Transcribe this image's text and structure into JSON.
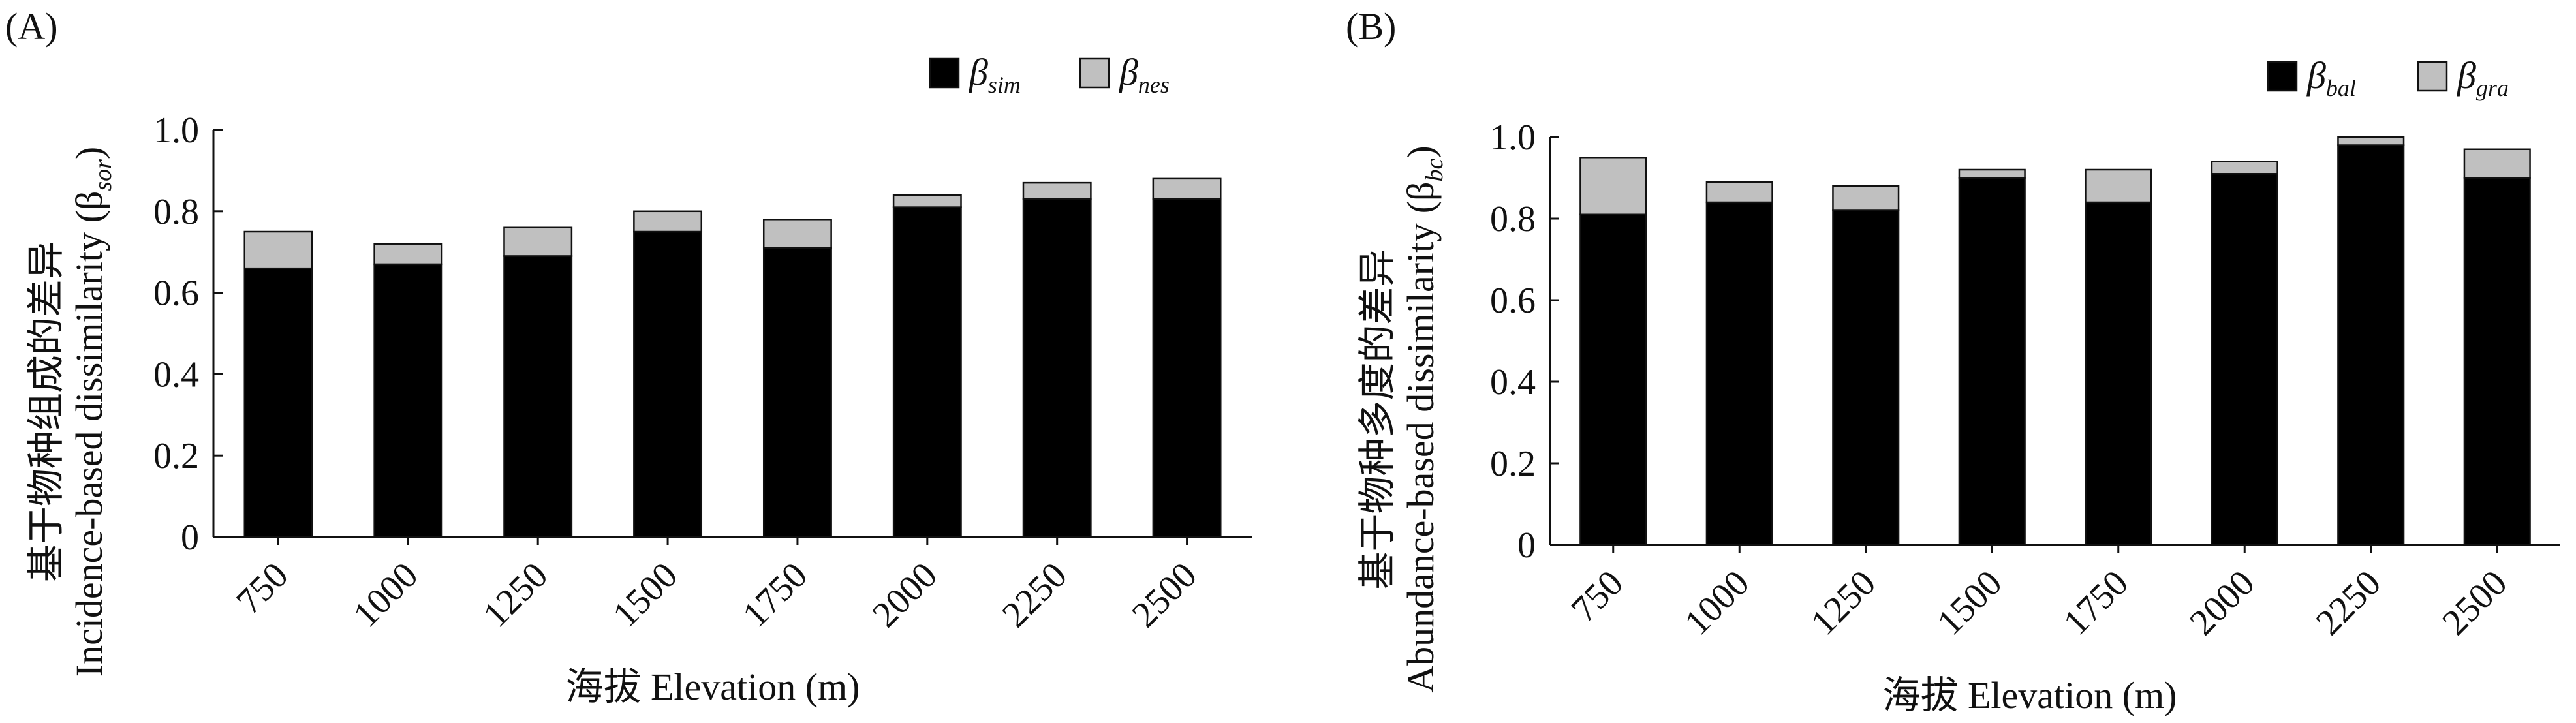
{
  "chart_data": [
    {
      "panel_label": "(A)",
      "type": "bar",
      "stacked": true,
      "categories": [
        "750",
        "1000",
        "1250",
        "1500",
        "1750",
        "2000",
        "2250",
        "2500"
      ],
      "series": [
        {
          "name": "β",
          "subscript": "sim",
          "color": "#000000",
          "values": [
            0.66,
            0.67,
            0.69,
            0.75,
            0.71,
            0.81,
            0.83,
            0.83
          ]
        },
        {
          "name": "β",
          "subscript": "nes",
          "color": "#c0c0c0",
          "values": [
            0.09,
            0.05,
            0.07,
            0.05,
            0.07,
            0.03,
            0.04,
            0.05
          ]
        }
      ],
      "ylabel_zh": "基于物种组成的差异",
      "ylabel_en": "Incidence-based dissimilarity (β",
      "ylabel_sub": "sor",
      "ylabel_close": ")",
      "xlabel": "海拔 Elevation (m)",
      "ylim": [
        0,
        1.0
      ],
      "yticks": [
        "0",
        "0.2",
        "0.4",
        "0.6",
        "0.8",
        "1.0"
      ],
      "legend_position": "top-right",
      "grid": false
    },
    {
      "panel_label": "(B)",
      "type": "bar",
      "stacked": true,
      "categories": [
        "750",
        "1000",
        "1250",
        "1500",
        "1750",
        "2000",
        "2250",
        "2500"
      ],
      "series": [
        {
          "name": "β",
          "subscript": "bal",
          "color": "#000000",
          "values": [
            0.81,
            0.84,
            0.82,
            0.9,
            0.84,
            0.91,
            0.98,
            0.9
          ]
        },
        {
          "name": "β",
          "subscript": "gra",
          "color": "#c0c0c0",
          "values": [
            0.14,
            0.05,
            0.06,
            0.02,
            0.08,
            0.03,
            0.02,
            0.07
          ]
        }
      ],
      "ylabel_zh": "基于物种多度的差异",
      "ylabel_en": "Abundance-based dissimilarity (β",
      "ylabel_sub": "bc",
      "ylabel_close": ")",
      "xlabel": "海拔 Elevation (m)",
      "ylim": [
        0,
        1.0
      ],
      "yticks": [
        "0",
        "0.2",
        "0.4",
        "0.6",
        "0.8",
        "1.0"
      ],
      "legend_position": "top-right",
      "grid": false
    }
  ]
}
